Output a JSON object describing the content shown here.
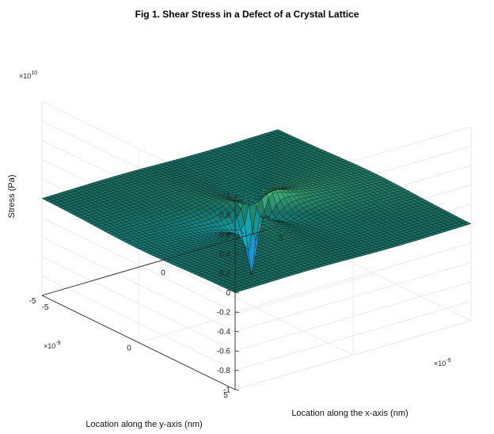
{
  "chart_data": {
    "type": "surface",
    "title": "Fig 1. Shear Stress in a Defect of a Crystal Lattice",
    "xlabel": "Location along the x-axis (nm)",
    "ylabel": "Location along the y-axis (nm)",
    "zlabel": "Stress (Pa)",
    "x_multiplier": "×10",
    "x_multiplier_exp": "-9",
    "y_multiplier": "×10",
    "y_multiplier_exp": "-9",
    "z_multiplier": "×10",
    "z_multiplier_exp": "10",
    "xlim": [
      -5,
      5
    ],
    "ylim": [
      -5,
      5
    ],
    "zlim": [
      -1,
      1
    ],
    "xticks": [
      "-5",
      "0",
      "5"
    ],
    "yticks": [
      "-5",
      "0",
      "5"
    ],
    "zticks": [
      "-1",
      "-0.8",
      "-0.6",
      "-0.4",
      "-0.2",
      "0",
      "0.2",
      "0.4",
      "0.6",
      "0.8",
      "1"
    ],
    "peak_max": 0.8,
    "peak_min": -1.0,
    "grid": true,
    "colormap": "parula",
    "edge_color": "#0b0b0b"
  }
}
